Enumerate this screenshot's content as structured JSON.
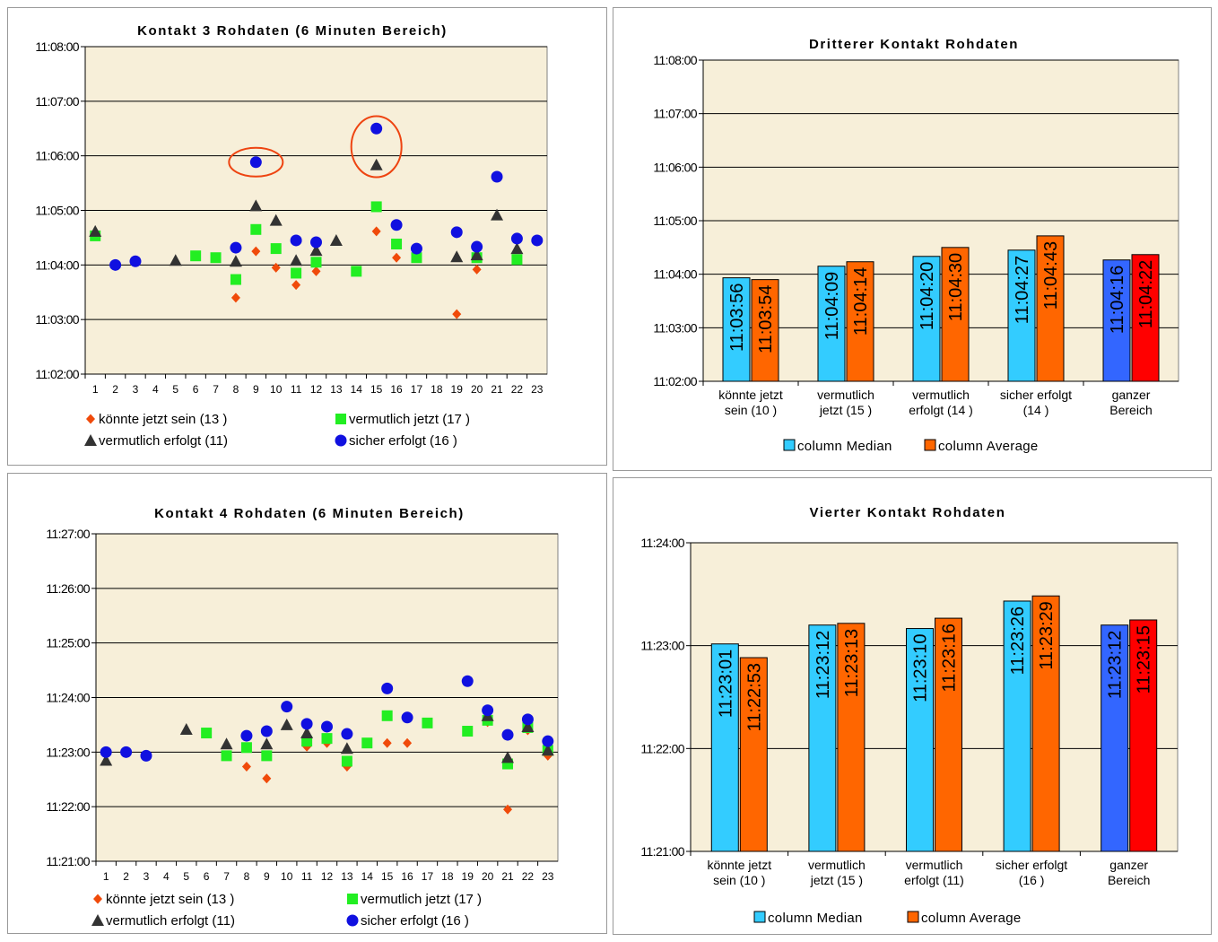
{
  "colors": {
    "plot_bg": "#f7efd9",
    "grid": "#000000",
    "diamond": "#f04a0a",
    "square": "#22ee22",
    "triangle": "#333333",
    "circle": "#1010e0",
    "median": "#33ccff",
    "average": "#ff6600",
    "median_total": "#3366ff",
    "average_total": "#ff0000",
    "highlight_ellipse": "#ee4411"
  },
  "chart_data": [
    {
      "type": "scatter",
      "title": "Kontakt 3 Rohdaten (6 Minuten Bereich)",
      "xlabel": "",
      "ylabel": "",
      "x_ticks": [
        "1",
        "2",
        "3",
        "4",
        "5",
        "6",
        "7",
        "8",
        "9",
        "10",
        "11",
        "12",
        "13",
        "14",
        "15",
        "16",
        "17",
        "18",
        "19",
        "20",
        "21",
        "22",
        "23"
      ],
      "y_ticks": [
        "11:02:00",
        "11:03:00",
        "11:04:00",
        "11:05:00",
        "11:06:00",
        "11:07:00",
        "11:08:00"
      ],
      "ylim": [
        "11:02:00",
        "11:08:00"
      ],
      "grid": true,
      "legend_position": "bottom",
      "series": [
        {
          "name": "könnte jetzt sein (13 )",
          "marker": "diamond",
          "points": [
            [
              8,
              "11:03:24"
            ],
            [
              9,
              "11:04:15"
            ],
            [
              10,
              "11:03:57"
            ],
            [
              11,
              "11:03:38"
            ],
            [
              12,
              "11:03:53"
            ],
            [
              15,
              "11:04:37"
            ],
            [
              16,
              "11:04:08"
            ],
            [
              19,
              "11:03:06"
            ],
            [
              20,
              "11:03:55"
            ]
          ]
        },
        {
          "name": "vermutlich jetzt (17 )",
          "marker": "square",
          "points": [
            [
              1,
              "11:04:32"
            ],
            [
              6,
              "11:04:10"
            ],
            [
              7,
              "11:04:08"
            ],
            [
              8,
              "11:03:44"
            ],
            [
              9,
              "11:04:39"
            ],
            [
              10,
              "11:04:18"
            ],
            [
              11,
              "11:03:51"
            ],
            [
              12,
              "11:04:03"
            ],
            [
              14,
              "11:03:53"
            ],
            [
              15,
              "11:05:04"
            ],
            [
              16,
              "11:04:23"
            ],
            [
              17,
              "11:04:08"
            ],
            [
              20,
              "11:04:08"
            ],
            [
              22,
              "11:04:06"
            ]
          ]
        },
        {
          "name": "vermutlich erfolgt (11)",
          "marker": "triangle",
          "points": [
            [
              1,
              "11:04:37"
            ],
            [
              5,
              "11:04:05"
            ],
            [
              8,
              "11:04:04"
            ],
            [
              9,
              "11:05:05"
            ],
            [
              10,
              "11:04:49"
            ],
            [
              11,
              "11:04:05"
            ],
            [
              12,
              "11:04:16"
            ],
            [
              13,
              "11:04:27"
            ],
            [
              15,
              "11:05:50"
            ],
            [
              19,
              "11:04:09"
            ],
            [
              20,
              "11:04:11"
            ],
            [
              21,
              "11:04:55"
            ],
            [
              22,
              "11:04:18"
            ]
          ]
        },
        {
          "name": "sicher erfolgt  (16 )",
          "marker": "circle",
          "points": [
            [
              2,
              "11:04:00"
            ],
            [
              3,
              "11:04:04"
            ],
            [
              8,
              "11:04:19"
            ],
            [
              9,
              "11:05:53"
            ],
            [
              11,
              "11:04:27"
            ],
            [
              12,
              "11:04:25"
            ],
            [
              15,
              "11:06:30"
            ],
            [
              16,
              "11:04:44"
            ],
            [
              17,
              "11:04:18"
            ],
            [
              19,
              "11:04:36"
            ],
            [
              20,
              "11:04:20"
            ],
            [
              21,
              "11:05:37"
            ],
            [
              22,
              "11:04:29"
            ],
            [
              23,
              "11:04:27"
            ]
          ]
        }
      ],
      "highlights": [
        {
          "x": 9,
          "y": "11:05:53"
        },
        {
          "x": 15,
          "y": "11:06:10"
        }
      ]
    },
    {
      "type": "bar",
      "title": "Dritterer Kontakt Rohdaten",
      "xlabel": "",
      "ylabel": "",
      "categories": [
        [
          "könnte jetzt",
          "sein (10 )"
        ],
        [
          "vermutlich",
          "jetzt (15 )"
        ],
        [
          "vermutlich",
          "erfolgt (14 )"
        ],
        [
          "sicher erfolgt",
          "(14 )"
        ],
        [
          "ganzer",
          "Bereich"
        ]
      ],
      "y_ticks": [
        "11:02:00",
        "11:03:00",
        "11:04:00",
        "11:05:00",
        "11:06:00",
        "11:07:00",
        "11:08:00"
      ],
      "ylim": [
        "11:02:00",
        "11:08:00"
      ],
      "grid": true,
      "legend_position": "bottom",
      "series": [
        {
          "name": "column Median",
          "values": [
            "11:03:56",
            "11:04:09",
            "11:04:20",
            "11:04:27",
            "11:04:16"
          ]
        },
        {
          "name": "column Average",
          "values": [
            "11:03:54",
            "11:04:14",
            "11:04:30",
            "11:04:43",
            "11:04:22"
          ]
        }
      ]
    },
    {
      "type": "scatter",
      "title": "Kontakt 4 Rohdaten (6 Minuten Bereich)",
      "xlabel": "",
      "ylabel": "",
      "x_ticks": [
        "1",
        "2",
        "3",
        "4",
        "5",
        "6",
        "7",
        "8",
        "9",
        "10",
        "11",
        "12",
        "13",
        "14",
        "15",
        "16",
        "17",
        "18",
        "19",
        "20",
        "21",
        "22",
        "23"
      ],
      "y_ticks": [
        "11:21:00",
        "11:22:00",
        "11:23:00",
        "11:24:00",
        "11:25:00",
        "11:26:00",
        "11:27:00"
      ],
      "ylim": [
        "11:21:00",
        "11:27:00"
      ],
      "grid": true,
      "legend_position": "bottom",
      "series": [
        {
          "name": "könnte jetzt sein (13 )",
          "marker": "diamond",
          "points": [
            [
              8,
              "11:22:44"
            ],
            [
              9,
              "11:22:31"
            ],
            [
              11,
              "11:23:06"
            ],
            [
              12,
              "11:23:10"
            ],
            [
              13,
              "11:22:44"
            ],
            [
              15,
              "11:23:10"
            ],
            [
              16,
              "11:23:10"
            ],
            [
              20,
              "11:23:33"
            ],
            [
              21,
              "11:21:57"
            ],
            [
              22,
              "11:23:24"
            ],
            [
              23,
              "11:22:56"
            ]
          ]
        },
        {
          "name": "vermutlich jetzt (17 )",
          "marker": "square",
          "points": [
            [
              6,
              "11:23:21"
            ],
            [
              7,
              "11:22:56"
            ],
            [
              8,
              "11:23:05"
            ],
            [
              9,
              "11:22:56"
            ],
            [
              11,
              "11:23:12"
            ],
            [
              12,
              "11:23:15"
            ],
            [
              13,
              "11:22:50"
            ],
            [
              14,
              "11:23:10"
            ],
            [
              15,
              "11:23:40"
            ],
            [
              17,
              "11:23:32"
            ],
            [
              19,
              "11:23:23"
            ],
            [
              20,
              "11:23:35"
            ],
            [
              21,
              "11:22:47"
            ],
            [
              22,
              "11:23:27"
            ],
            [
              23,
              "11:23:02"
            ]
          ]
        },
        {
          "name": "vermutlich erfolgt (11)",
          "marker": "triangle",
          "points": [
            [
              1,
              "11:22:51"
            ],
            [
              5,
              "11:23:25"
            ],
            [
              7,
              "11:23:09"
            ],
            [
              9,
              "11:23:09"
            ],
            [
              10,
              "11:23:30"
            ],
            [
              11,
              "11:23:21"
            ],
            [
              13,
              "11:23:04"
            ],
            [
              20,
              "11:23:40"
            ],
            [
              21,
              "11:22:54"
            ],
            [
              22,
              "11:23:28"
            ],
            [
              23,
              "11:23:02"
            ]
          ]
        },
        {
          "name": "sicher erfolgt  (16 )",
          "marker": "circle",
          "points": [
            [
              1,
              "11:23:00"
            ],
            [
              2,
              "11:23:00"
            ],
            [
              3,
              "11:22:56"
            ],
            [
              8,
              "11:23:18"
            ],
            [
              9,
              "11:23:23"
            ],
            [
              10,
              "11:23:50"
            ],
            [
              11,
              "11:23:31"
            ],
            [
              12,
              "11:23:28"
            ],
            [
              13,
              "11:23:20"
            ],
            [
              15,
              "11:24:10"
            ],
            [
              16,
              "11:23:38"
            ],
            [
              19,
              "11:24:18"
            ],
            [
              20,
              "11:23:46"
            ],
            [
              21,
              "11:23:19"
            ],
            [
              22,
              "11:23:36"
            ],
            [
              23,
              "11:23:12"
            ]
          ]
        }
      ]
    },
    {
      "type": "bar",
      "title": "Vierter Kontakt Rohdaten",
      "xlabel": "",
      "ylabel": "",
      "categories": [
        [
          "könnte jetzt",
          "sein (10 )"
        ],
        [
          "vermutlich",
          "jetzt (15 )"
        ],
        [
          "vermutlich",
          "erfolgt (11)"
        ],
        [
          "sicher erfolgt",
          "(16 )"
        ],
        [
          "ganzer",
          "Bereich"
        ]
      ],
      "y_ticks": [
        "11:21:00",
        "11:22:00",
        "11:23:00",
        "11:24:00"
      ],
      "ylim": [
        "11:21:00",
        "11:24:00"
      ],
      "grid": true,
      "legend_position": "bottom",
      "series": [
        {
          "name": "column Median",
          "values": [
            "11:23:01",
            "11:23:12",
            "11:23:10",
            "11:23:26",
            "11:23:12"
          ]
        },
        {
          "name": "column Average",
          "values": [
            "11:22:53",
            "11:23:13",
            "11:23:16",
            "11:23:29",
            "11:23:15"
          ]
        }
      ]
    }
  ]
}
